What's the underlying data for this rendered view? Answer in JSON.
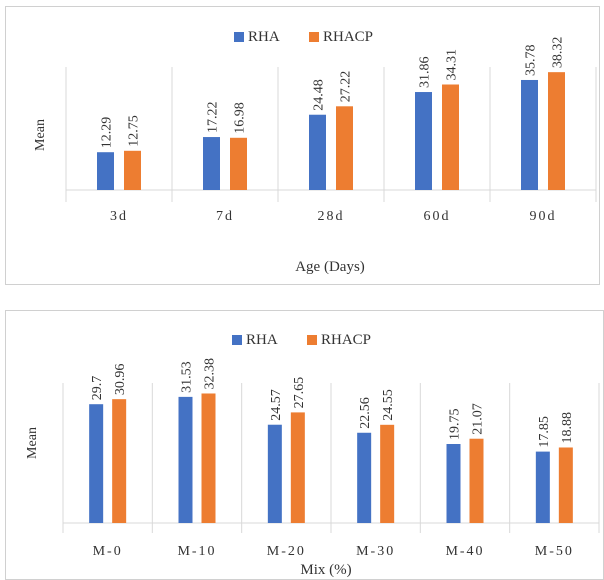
{
  "chart_data": [
    {
      "type": "bar",
      "title": "",
      "xlabel": "Age (Days)",
      "ylabel": "Mean",
      "categories": [
        "3d",
        "7d",
        "28d",
        "60d",
        "90d"
      ],
      "series": [
        {
          "name": "RHA",
          "values": [
            12.29,
            17.22,
            24.48,
            31.86,
            35.78
          ]
        },
        {
          "name": "RHACP",
          "values": [
            12.75,
            16.98,
            27.22,
            34.31,
            38.32
          ]
        }
      ],
      "ylim": [
        0,
        40
      ],
      "grid": true,
      "legend": "top"
    },
    {
      "type": "bar",
      "title": "",
      "xlabel": "Mix (%)",
      "ylabel": "Mean",
      "categories": [
        "M-0",
        "M-10",
        "M-20",
        "M-30",
        "M-40",
        "M-50"
      ],
      "series": [
        {
          "name": "RHA",
          "values": [
            29.7,
            31.53,
            24.57,
            22.56,
            19.75,
            17.85
          ]
        },
        {
          "name": "RHACP",
          "values": [
            30.96,
            32.38,
            27.65,
            24.55,
            21.07,
            18.88
          ]
        }
      ],
      "ylim": [
        0,
        35
      ],
      "grid": true,
      "legend": "top"
    }
  ],
  "colors": {
    "RHA": "#4472C4",
    "RHACP": "#ED7D31",
    "grid": "#d9d9d9",
    "text": "#333333"
  }
}
